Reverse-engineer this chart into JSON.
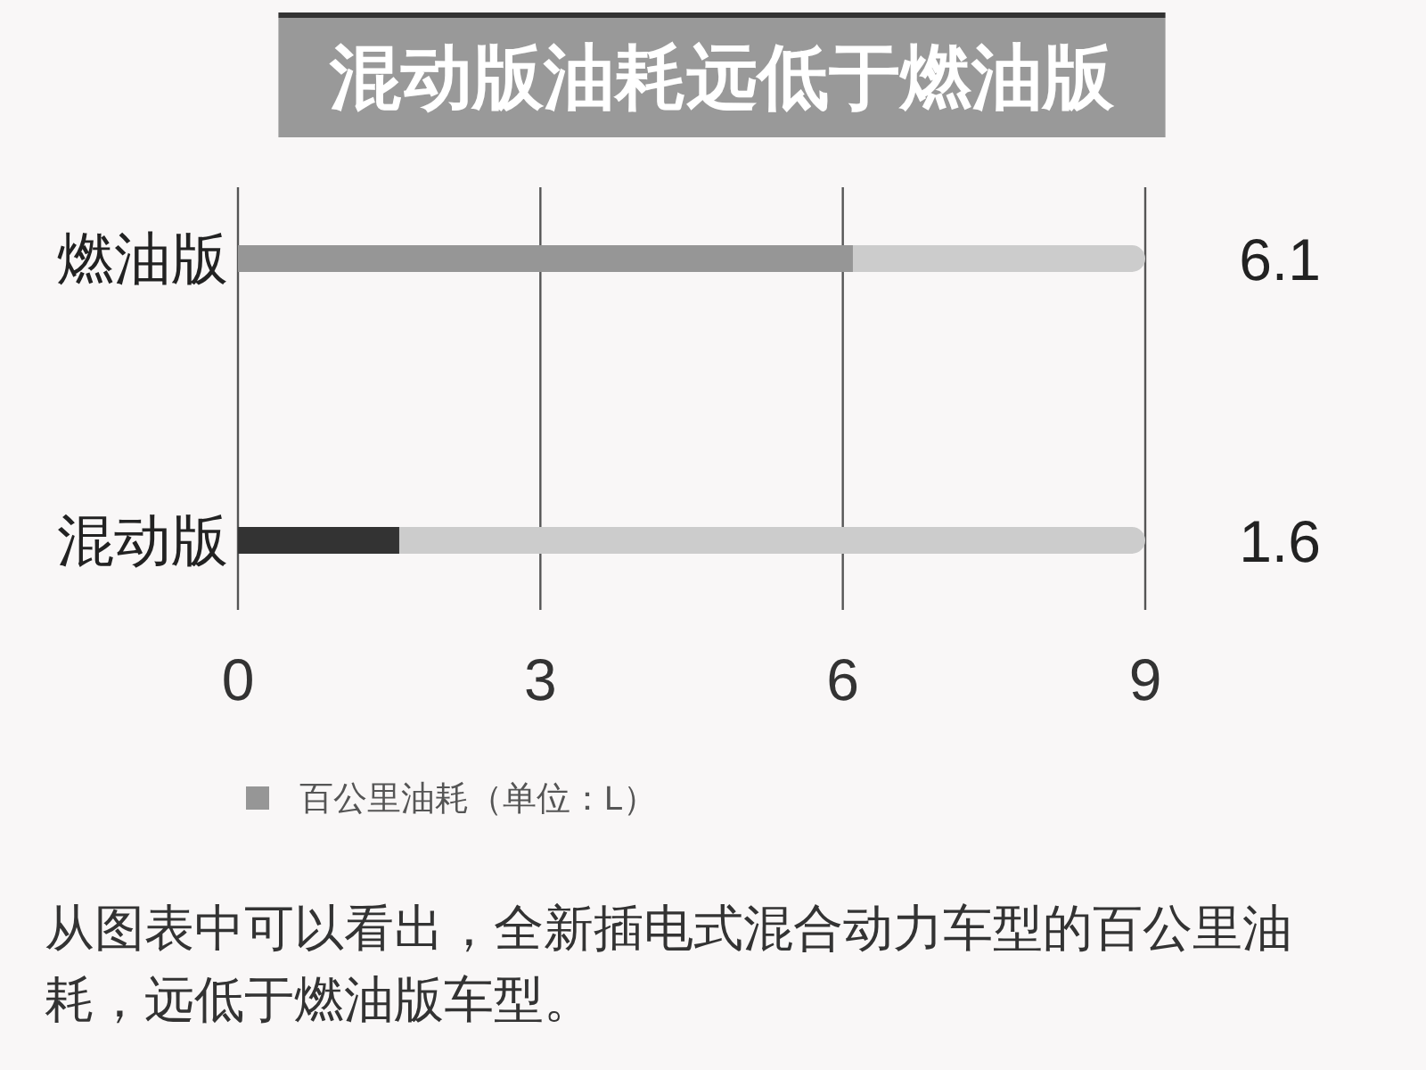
{
  "chart_data": {
    "type": "bar",
    "orientation": "horizontal",
    "stacked": true,
    "title": "混动版油耗远低于燃油版",
    "categories": [
      "燃油版",
      "混动版"
    ],
    "series": [
      {
        "name": "百公里油耗（单位：L）",
        "color": "#969696",
        "colors": [
          "#969696",
          "#333333"
        ],
        "values": [
          6.1,
          1.6
        ],
        "value_labels": [
          "6.1",
          "1.6"
        ]
      },
      {
        "color": "#cccccc",
        "values": [
          2.9,
          7.4
        ]
      }
    ],
    "xlim": [
      0,
      9
    ],
    "xticks": [
      0,
      3,
      6,
      9
    ],
    "grid": "x",
    "legend": "bottom",
    "annotations": [
      "从图表中可以看出，全新插电式混合动力车型的百公里油耗，远低于燃油版车型。"
    ]
  }
}
